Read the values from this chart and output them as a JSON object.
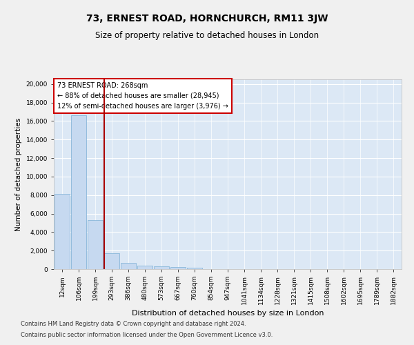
{
  "title": "73, ERNEST ROAD, HORNCHURCH, RM11 3JW",
  "subtitle": "Size of property relative to detached houses in London",
  "xlabel": "Distribution of detached houses by size in London",
  "ylabel": "Number of detached properties",
  "footnote1": "Contains HM Land Registry data © Crown copyright and database right 2024.",
  "footnote2": "Contains public sector information licensed under the Open Government Licence v3.0.",
  "bins": [
    "12sqm",
    "106sqm",
    "199sqm",
    "293sqm",
    "386sqm",
    "480sqm",
    "573sqm",
    "667sqm",
    "760sqm",
    "854sqm",
    "947sqm",
    "1041sqm",
    "1134sqm",
    "1228sqm",
    "1321sqm",
    "1415sqm",
    "1508sqm",
    "1602sqm",
    "1695sqm",
    "1789sqm",
    "1882sqm"
  ],
  "values": [
    8100,
    16600,
    5300,
    1750,
    700,
    350,
    270,
    200,
    150,
    0,
    0,
    0,
    0,
    0,
    0,
    0,
    0,
    0,
    0,
    0,
    0
  ],
  "bar_color": "#c6d9f0",
  "bar_edge_color": "#7bafd4",
  "vline_x": 2.55,
  "vline_color": "#aa0000",
  "annotation_text": "73 ERNEST ROAD: 268sqm\n← 88% of detached houses are smaller (28,945)\n12% of semi-detached houses are larger (3,976) →",
  "annotation_box_color": "#ffffff",
  "annotation_box_edge": "#cc0000",
  "ylim_max": 20500,
  "yticks": [
    0,
    2000,
    4000,
    6000,
    8000,
    10000,
    12000,
    14000,
    16000,
    18000,
    20000
  ],
  "bg_color": "#dce8f5",
  "grid_color": "#ffffff",
  "fig_bg": "#f0f0f0",
  "title_fontsize": 10,
  "subtitle_fontsize": 8.5,
  "ylabel_fontsize": 7.5,
  "xlabel_fontsize": 8,
  "tick_fontsize": 6.5,
  "annotation_fontsize": 7,
  "footnote_fontsize": 6
}
